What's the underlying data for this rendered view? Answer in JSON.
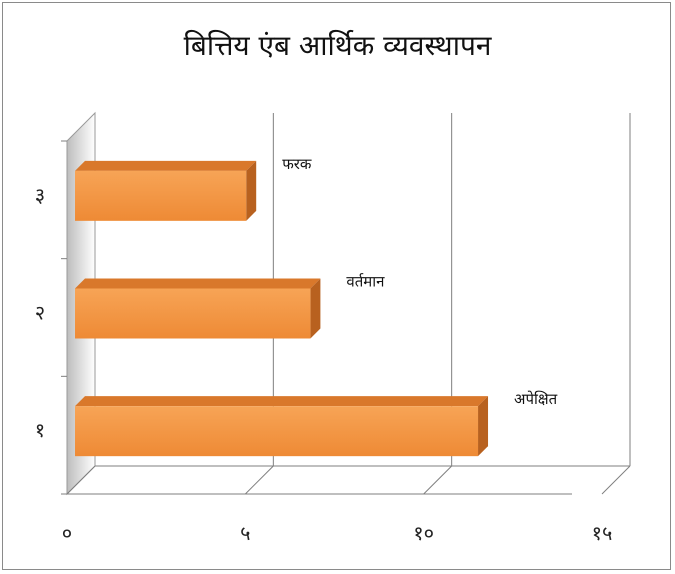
{
  "chart_data": {
    "type": "bar",
    "orientation": "horizontal",
    "title": "बित्तिय एंब आर्थिक व्यवस्थापन",
    "categories": [
      "१",
      "२",
      "३"
    ],
    "values": [
      11.3,
      6.6,
      4.8
    ],
    "data_labels": [
      "अपेक्षित",
      "वर्तमान",
      "फरक"
    ],
    "x_ticks": [
      "०",
      "५",
      "१०",
      "१५"
    ],
    "xlim": [
      0,
      15
    ],
    "grid": true,
    "legend": "none",
    "bar_color": "#F0913F"
  }
}
